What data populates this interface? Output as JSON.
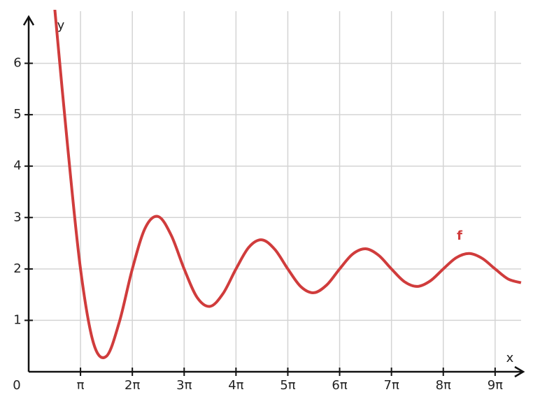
{
  "chart_data": {
    "type": "line",
    "x_label": "x",
    "y_label": "y",
    "origin_label": "0",
    "x": [
      1.5708,
      2.3562,
      3.1416,
      3.927,
      4.7124,
      5.4978,
      6.2832,
      7.0686,
      7.854,
      8.6394,
      9.4248,
      10.2102,
      10.9956,
      11.781,
      12.5664,
      13.3518,
      14.1372,
      14.9226,
      15.708,
      16.4934,
      17.2788,
      18.0642,
      18.8496,
      19.635,
      20.4204,
      21.2058,
      21.9911,
      22.7765,
      23.5619,
      24.3473,
      25.1327,
      25.9181,
      26.7035,
      27.4889,
      28.2743,
      29.0597,
      29.8451
    ],
    "series": [
      {
        "name": "f",
        "color": "#d03c3c",
        "values": [
          7.093,
          4.401,
          2,
          0.559,
          0.302,
          0.971,
          2,
          2.8,
          3.019,
          2.655,
          2,
          1.446,
          1.272,
          1.52,
          2,
          2.424,
          2.566,
          2.379,
          2,
          1.657,
          1.537,
          1.687,
          2,
          2.288,
          2.392,
          2.267,
          2,
          1.752,
          1.66,
          1.768,
          2,
          2.218,
          2.3,
          2.206,
          2,
          1.805,
          1.732
        ]
      }
    ],
    "xlim": [
      0,
      29.85
    ],
    "ylim": [
      0,
      7
    ],
    "xticks": [
      {
        "value": 3.1416,
        "label": "π"
      },
      {
        "value": 6.2832,
        "label": "2π"
      },
      {
        "value": 9.4248,
        "label": "3π"
      },
      {
        "value": 12.5664,
        "label": "4π"
      },
      {
        "value": 15.708,
        "label": "5π"
      },
      {
        "value": 18.8496,
        "label": "6π"
      },
      {
        "value": 21.9911,
        "label": "7π"
      },
      {
        "value": 25.1327,
        "label": "8π"
      },
      {
        "value": 28.2743,
        "label": "9π"
      }
    ],
    "yticks": [
      1,
      2,
      3,
      4,
      5,
      6
    ],
    "grid": true
  }
}
